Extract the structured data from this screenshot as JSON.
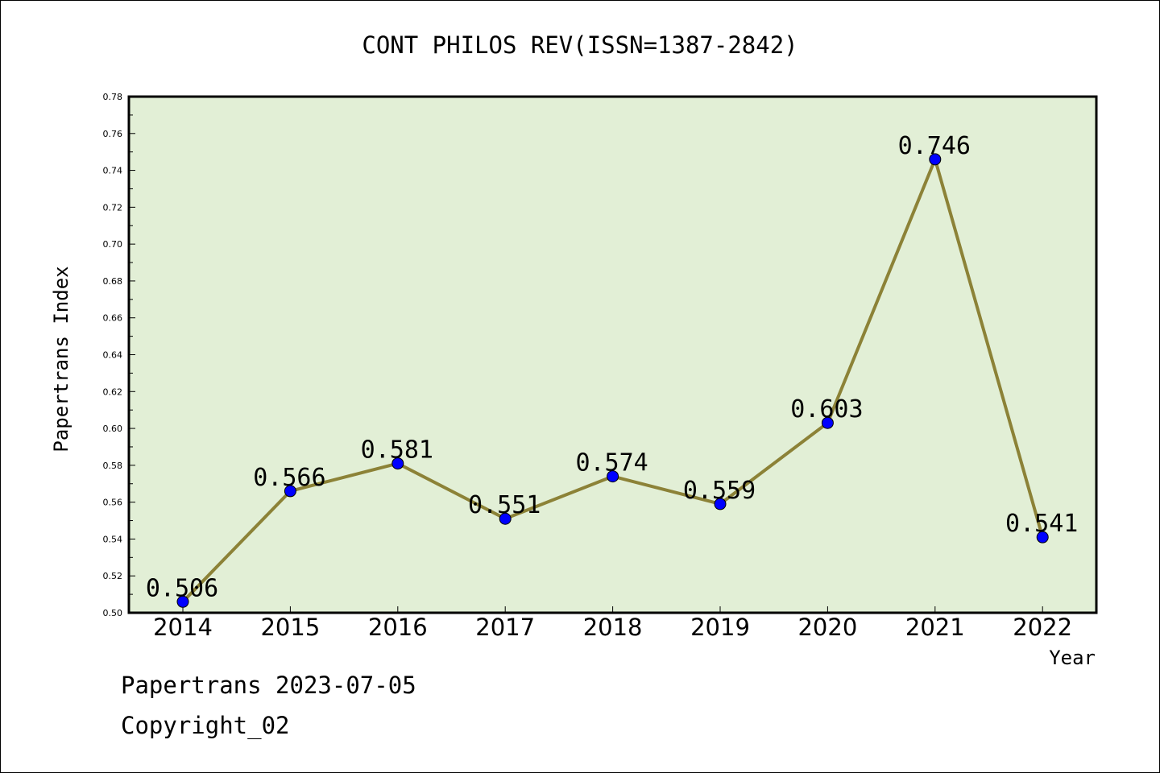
{
  "chart_data": {
    "type": "line",
    "title": "CONT PHILOS REV(ISSN=1387-2842)",
    "xlabel": "Year",
    "ylabel": "Papertrans Index",
    "categories": [
      "2014",
      "2015",
      "2016",
      "2017",
      "2018",
      "2019",
      "2020",
      "2021",
      "2022"
    ],
    "values": [
      0.506,
      0.566,
      0.581,
      0.551,
      0.574,
      0.559,
      0.603,
      0.746,
      0.541
    ],
    "data_labels": [
      "0.506",
      "0.566",
      "0.581",
      "0.551",
      "0.574",
      "0.559",
      "0.603",
      "0.746",
      "0.541"
    ],
    "ylim": [
      0.5,
      0.78
    ],
    "yticks": [
      "0.50",
      "0.52",
      "0.54",
      "0.56",
      "0.58",
      "0.60",
      "0.62",
      "0.64",
      "0.66",
      "0.68",
      "0.70",
      "0.72",
      "0.74",
      "0.76",
      "0.78"
    ],
    "grid": false,
    "colors": {
      "plot_background": "#e2efd6",
      "line": "#8c8237",
      "marker": "#0000ff"
    }
  },
  "footer": {
    "source_line": "Papertrans 2023-07-05",
    "copyright_line": "Copyright_02"
  }
}
